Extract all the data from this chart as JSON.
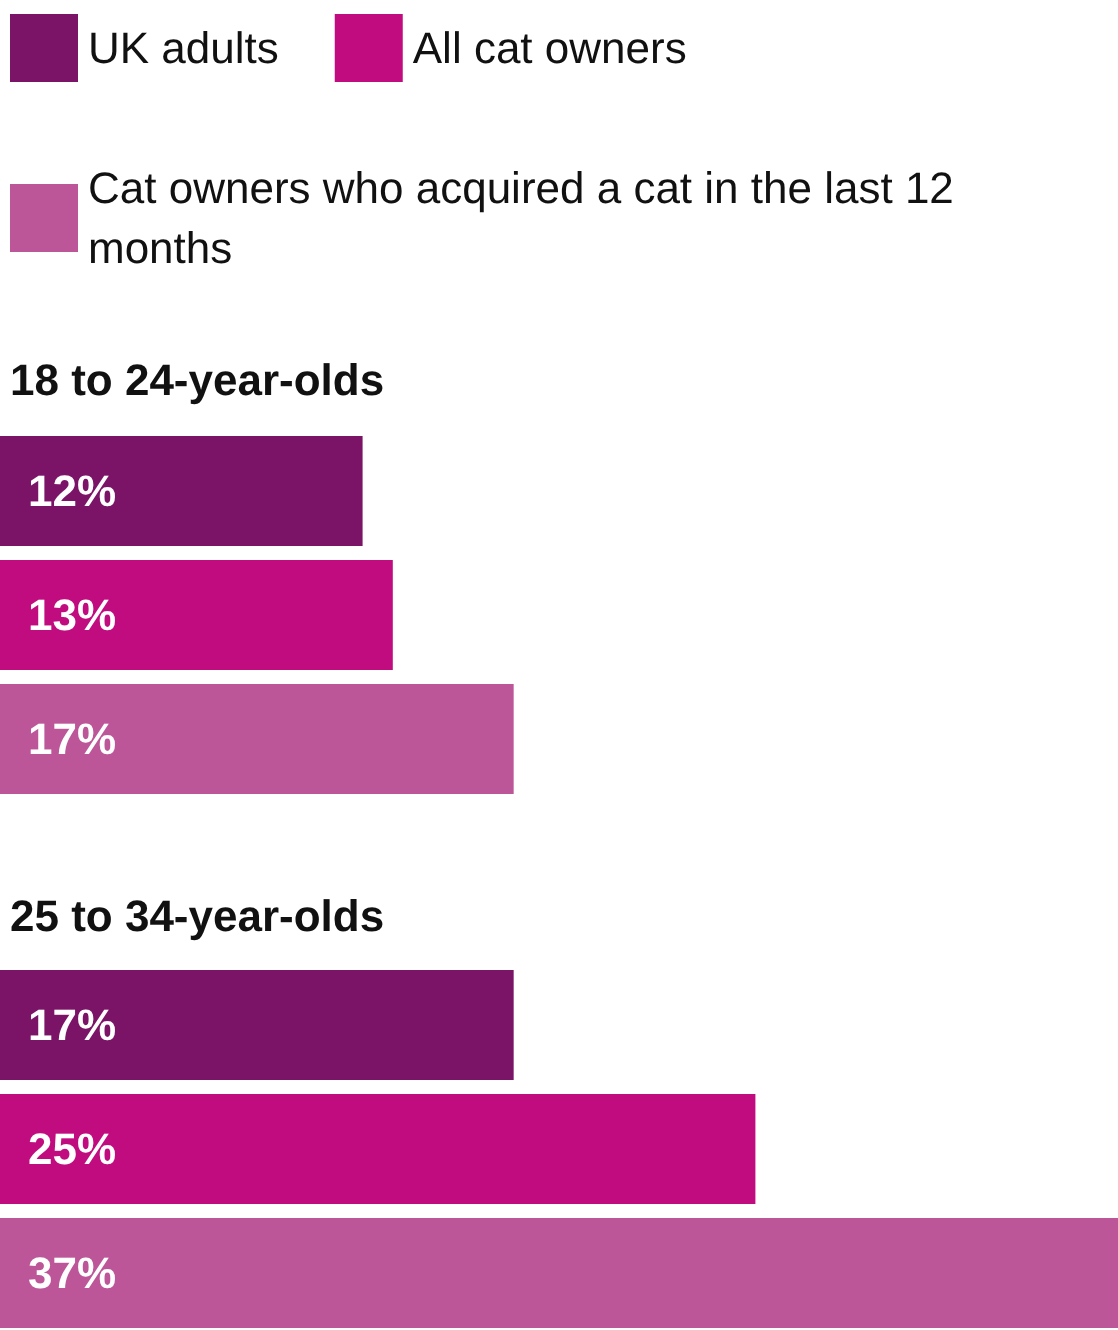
{
  "chart_data": {
    "type": "bar",
    "orientation": "horizontal",
    "categories": [
      "18 to 24-year-olds",
      "25 to 34-year-olds"
    ],
    "legend": "top left",
    "series": [
      {
        "name": "UK adults",
        "color": "#7b1466",
        "values": [
          12,
          17
        ],
        "value_labels": [
          "12%",
          "17%"
        ]
      },
      {
        "name": "All cat owners",
        "color": "#c10c7f",
        "values": [
          13,
          25
        ],
        "value_labels": [
          "13%",
          "25%"
        ]
      },
      {
        "name": "Cat owners who acquired a cat in the last 12 months",
        "color": "#bd5699",
        "values": [
          17,
          37
        ],
        "value_labels": [
          "17%",
          "37%"
        ]
      }
    ]
  }
}
